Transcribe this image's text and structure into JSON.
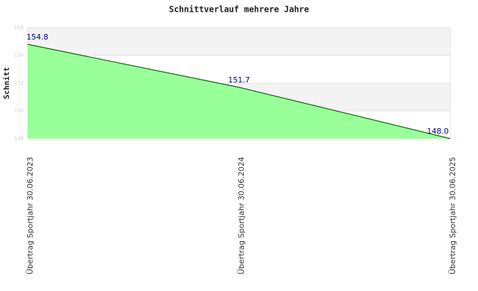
{
  "chart_data": {
    "type": "area",
    "title": "Schnittverlauf mehrere Jahre",
    "y_label": "Schnitt",
    "categories": [
      "Übertrag Sportjahr 30.06.2023",
      "Übertrag Sportjahr 30.06.2024",
      "Übertrag Sportjahr 30.06.2025"
    ],
    "values": [
      154.8,
      151.7,
      148.0
    ],
    "value_labels": [
      "154.8",
      "151.7",
      "148.0"
    ],
    "color": "#99ff99",
    "line_color": "#006600",
    "label_color": "#000080",
    "ylim": [
      148,
      156
    ],
    "yticks": [
      148,
      150,
      152,
      154,
      156
    ],
    "grid": true
  }
}
